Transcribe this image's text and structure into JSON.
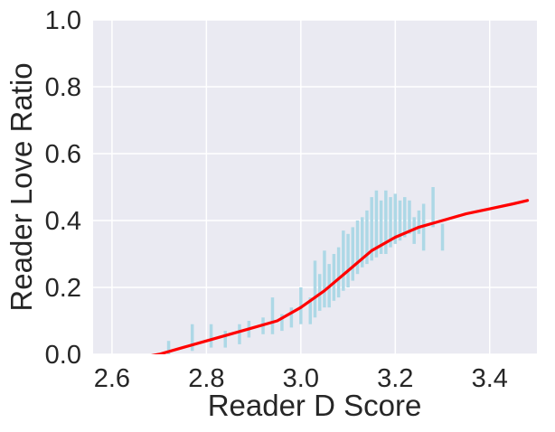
{
  "chart_data": {
    "type": "line",
    "title": "",
    "xlabel": "Reader D Score",
    "ylabel": "Reader Love Ratio",
    "xlim": [
      2.56,
      3.5
    ],
    "ylim": [
      0.0,
      1.0
    ],
    "x_ticks": [
      "2.6",
      "2.8",
      "3.0",
      "3.2",
      "3.4"
    ],
    "x_tick_values": [
      2.6,
      2.8,
      3.0,
      3.2,
      3.4
    ],
    "y_ticks": [
      "0.0",
      "0.2",
      "0.4",
      "0.6",
      "0.8",
      "1.0"
    ],
    "y_tick_values": [
      0.0,
      0.2,
      0.4,
      0.6,
      0.8,
      1.0
    ],
    "grid": true,
    "background": "#EAEAF2",
    "series": [
      {
        "kind": "ranges",
        "color": "#ADD8E6",
        "points": [
          {
            "x": 2.72,
            "low": 0.0,
            "high": 0.04
          },
          {
            "x": 2.77,
            "low": 0.01,
            "high": 0.09
          },
          {
            "x": 2.81,
            "low": 0.02,
            "high": 0.09
          },
          {
            "x": 2.84,
            "low": 0.02,
            "high": 0.07
          },
          {
            "x": 2.87,
            "low": 0.03,
            "high": 0.09
          },
          {
            "x": 2.89,
            "low": 0.05,
            "high": 0.1
          },
          {
            "x": 2.92,
            "low": 0.06,
            "high": 0.11
          },
          {
            "x": 2.94,
            "low": 0.06,
            "high": 0.17
          },
          {
            "x": 2.96,
            "low": 0.07,
            "high": 0.12
          },
          {
            "x": 2.98,
            "low": 0.08,
            "high": 0.14
          },
          {
            "x": 3.0,
            "low": 0.09,
            "high": 0.2
          },
          {
            "x": 3.02,
            "low": 0.09,
            "high": 0.17
          },
          {
            "x": 3.03,
            "low": 0.11,
            "high": 0.28
          },
          {
            "x": 3.04,
            "low": 0.13,
            "high": 0.24
          },
          {
            "x": 3.05,
            "low": 0.14,
            "high": 0.31
          },
          {
            "x": 3.06,
            "low": 0.14,
            "high": 0.27
          },
          {
            "x": 3.07,
            "low": 0.16,
            "high": 0.3
          },
          {
            "x": 3.08,
            "low": 0.17,
            "high": 0.32
          },
          {
            "x": 3.09,
            "low": 0.19,
            "high": 0.37
          },
          {
            "x": 3.1,
            "low": 0.2,
            "high": 0.36
          },
          {
            "x": 3.11,
            "low": 0.22,
            "high": 0.38
          },
          {
            "x": 3.12,
            "low": 0.24,
            "high": 0.4
          },
          {
            "x": 3.13,
            "low": 0.26,
            "high": 0.41
          },
          {
            "x": 3.14,
            "low": 0.27,
            "high": 0.43
          },
          {
            "x": 3.15,
            "low": 0.28,
            "high": 0.47
          },
          {
            "x": 3.16,
            "low": 0.29,
            "high": 0.49
          },
          {
            "x": 3.17,
            "low": 0.3,
            "high": 0.46
          },
          {
            "x": 3.18,
            "low": 0.3,
            "high": 0.49
          },
          {
            "x": 3.19,
            "low": 0.32,
            "high": 0.47
          },
          {
            "x": 3.2,
            "low": 0.33,
            "high": 0.48
          },
          {
            "x": 3.21,
            "low": 0.34,
            "high": 0.46
          },
          {
            "x": 3.22,
            "low": 0.35,
            "high": 0.47
          },
          {
            "x": 3.23,
            "low": 0.36,
            "high": 0.46
          },
          {
            "x": 3.24,
            "low": 0.33,
            "high": 0.41
          },
          {
            "x": 3.25,
            "low": 0.36,
            "high": 0.43
          },
          {
            "x": 3.26,
            "low": 0.31,
            "high": 0.45
          },
          {
            "x": 3.28,
            "low": 0.38,
            "high": 0.5
          },
          {
            "x": 3.3,
            "low": 0.31,
            "high": 0.39
          }
        ]
      },
      {
        "kind": "line",
        "color": "#FF0000",
        "x": [
          2.66,
          2.7,
          2.75,
          2.8,
          2.85,
          2.9,
          2.95,
          3.0,
          3.05,
          3.1,
          3.15,
          3.2,
          3.25,
          3.3,
          3.35,
          3.4,
          3.45,
          3.48
        ],
        "y": [
          -0.01,
          0.0,
          0.02,
          0.04,
          0.06,
          0.08,
          0.1,
          0.14,
          0.19,
          0.25,
          0.31,
          0.35,
          0.38,
          0.4,
          0.42,
          0.435,
          0.45,
          0.46
        ]
      }
    ]
  }
}
